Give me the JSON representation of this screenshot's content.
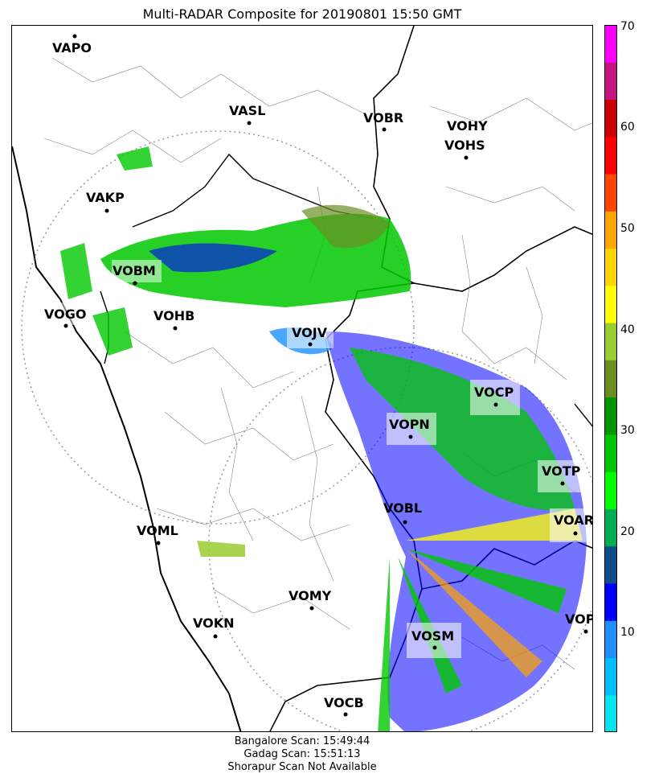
{
  "title": "Multi-RADAR Composite for 20190801 15:50 GMT",
  "footer": {
    "line1": "Bangalore Scan: 15:49:44",
    "line2": "Gadag Scan: 15:51:13",
    "line3": "Shorapur Scan Not Available"
  },
  "stations": [
    {
      "code": "VAPO"
    },
    {
      "code": "VASL"
    },
    {
      "code": "VOBR"
    },
    {
      "code": "VOHY"
    },
    {
      "code": "VOHS"
    },
    {
      "code": "VAKP"
    },
    {
      "code": "VOBM"
    },
    {
      "code": "VOGO"
    },
    {
      "code": "VOHB"
    },
    {
      "code": "VOJV"
    },
    {
      "code": "VOCP"
    },
    {
      "code": "VOPN"
    },
    {
      "code": "VOTP"
    },
    {
      "code": "VOBL"
    },
    {
      "code": "VOAR"
    },
    {
      "code": "VOML"
    },
    {
      "code": "VOMY"
    },
    {
      "code": "VOKN"
    },
    {
      "code": "VOSM"
    },
    {
      "code": "VOPC"
    },
    {
      "code": "VOCB"
    }
  ],
  "colorbar": {
    "min": 0,
    "max": 70,
    "ticks": [
      "10",
      "20",
      "30",
      "40",
      "50",
      "60",
      "70"
    ],
    "colors": [
      "#00e5ee",
      "#00bfff",
      "#1e90ff",
      "#0000ff",
      "#104e8b",
      "#00b050",
      "#00ff00",
      "#00c800",
      "#009600",
      "#6b8e23",
      "#9acd32",
      "#ffff00",
      "#ffd700",
      "#ffa500",
      "#ff4500",
      "#ff0000",
      "#cc0000",
      "#c71585",
      "#ff00ff"
    ]
  }
}
